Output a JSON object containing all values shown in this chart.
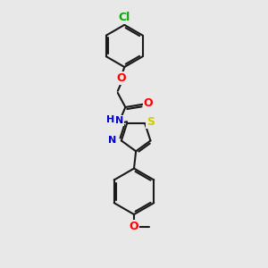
{
  "bg_color": "#e8e8e8",
  "bond_color": "#1a1a1a",
  "bond_width": 1.5,
  "atom_colors": {
    "O": "#ff0000",
    "N": "#0000cc",
    "S": "#cccc00",
    "Cl": "#00aa00",
    "C": "#1a1a1a",
    "H": "#0000cc"
  },
  "font_size": 8,
  "fig_size": [
    3.0,
    3.0
  ],
  "dpi": 100,
  "xlim": [
    20,
    220
  ],
  "ylim": [
    10,
    290
  ]
}
